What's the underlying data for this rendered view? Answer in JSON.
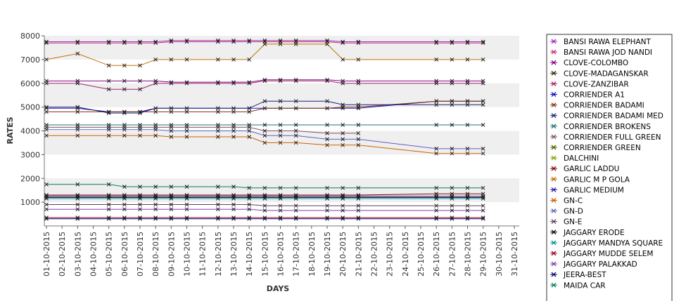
{
  "chart_data": {
    "type": "line",
    "xlabel": "DAYS",
    "ylabel": "RATES",
    "ylim": [
      0,
      8000
    ],
    "yticks": [
      1000,
      2000,
      3000,
      4000,
      5000,
      6000,
      7000,
      8000
    ],
    "grid": "horizontal alternating bands",
    "legend_position": "right",
    "categories": [
      "01-10-2015",
      "02-10-2015",
      "03-10-2015",
      "04-10-2015",
      "05-10-2015",
      "06-10-2015",
      "07-10-2015",
      "08-10-2015",
      "09-10-2015",
      "10-10-2015",
      "11-10-2015",
      "12-10-2015",
      "13-10-2015",
      "14-10-2015",
      "15-10-2015",
      "16-10-2015",
      "17-10-2015",
      "18-10-2015",
      "19-10-2015",
      "20-10-2015",
      "21-10-2015",
      "22-10-2015",
      "23-10-2015",
      "24-10-2015",
      "25-10-2015",
      "26-10-2015",
      "27-10-2015",
      "28-10-2015",
      "29-10-2015",
      "30-10-2015",
      "31-10-2015"
    ],
    "series": [
      {
        "name": "BANSI RAWA ELEPHANT",
        "color": "#9b30c8",
        "values": [
          7750,
          null,
          7750,
          null,
          7750,
          7750,
          7750,
          7750,
          7800,
          7800,
          null,
          7800,
          7800,
          7800,
          7800,
          7800,
          7800,
          null,
          7800,
          7750,
          7750,
          null,
          null,
          null,
          null,
          7750,
          7750,
          7750,
          7750,
          null,
          null
        ]
      },
      {
        "name": "BANSI RAWA JOD NANDI",
        "color": "#c0306a",
        "values": [
          7700,
          null,
          7700,
          null,
          7700,
          7700,
          7700,
          7700,
          7750,
          7750,
          null,
          7750,
          7750,
          7750,
          7750,
          7750,
          7750,
          null,
          7750,
          7700,
          7700,
          null,
          null,
          null,
          null,
          7700,
          7700,
          7700,
          7700,
          null,
          null
        ]
      },
      {
        "name": "CLOVE-COLOMBO",
        "color": "#7a0080",
        "values": [
          6100,
          null,
          6100,
          null,
          6100,
          6100,
          6100,
          6100,
          6050,
          6050,
          null,
          6050,
          6050,
          6050,
          6150,
          6150,
          6150,
          null,
          6150,
          6100,
          6100,
          null,
          null,
          null,
          null,
          6100,
          6100,
          6100,
          6100,
          null,
          null
        ]
      },
      {
        "name": "CLOVE-MADAGANSKAR",
        "color": "#2c2c00",
        "values": [
          null,
          null,
          null,
          null,
          null,
          null,
          null,
          null,
          null,
          null,
          null,
          null,
          null,
          null,
          null,
          null,
          null,
          null,
          null,
          null,
          null,
          null,
          null,
          null,
          null,
          null,
          null,
          null,
          null,
          null,
          null
        ]
      },
      {
        "name": "CLOVE-ZANZIBAR",
        "color": "#a0206a",
        "values": [
          6000,
          null,
          6000,
          null,
          5750,
          5750,
          5750,
          6000,
          6000,
          6000,
          null,
          6000,
          6000,
          6000,
          6100,
          6100,
          6100,
          null,
          6100,
          6000,
          6000,
          null,
          null,
          null,
          null,
          6000,
          6000,
          6000,
          6000,
          null,
          null
        ]
      },
      {
        "name": "CORRIENDER A1",
        "color": "#1010c0",
        "values": [
          4950,
          null,
          4950,
          null,
          4800,
          4800,
          4800,
          4950,
          4950,
          4950,
          null,
          4950,
          4950,
          4950,
          4950,
          4950,
          4950,
          null,
          4950,
          4950,
          4950,
          null,
          null,
          null,
          null,
          5250,
          5250,
          5250,
          5250,
          null,
          null
        ]
      },
      {
        "name": "CORRIENDER BADAMI",
        "color": "#803010",
        "values": [
          4800,
          null,
          4800,
          null,
          4800,
          4800,
          4800,
          4800,
          4800,
          4800,
          null,
          4800,
          4800,
          4800,
          4950,
          4950,
          4950,
          null,
          4950,
          5000,
          5000,
          null,
          null,
          null,
          null,
          5250,
          5250,
          5250,
          5250,
          null,
          null
        ]
      },
      {
        "name": "CORRIENDER BADAMI MED",
        "color": "#202070",
        "values": [
          5000,
          null,
          5000,
          null,
          4750,
          4750,
          4750,
          4950,
          4950,
          4950,
          null,
          4950,
          4950,
          4950,
          5250,
          5250,
          5250,
          null,
          5250,
          5100,
          5100,
          null,
          null,
          null,
          null,
          5100,
          5100,
          5100,
          5100,
          null,
          null
        ]
      },
      {
        "name": "CORRIENDER BROKENS",
        "color": "#207070",
        "values": [
          4250,
          null,
          4250,
          null,
          4250,
          4250,
          4250,
          4250,
          4250,
          4250,
          null,
          4250,
          4250,
          4250,
          4250,
          4250,
          4250,
          null,
          4250,
          4250,
          4250,
          null,
          null,
          null,
          null,
          4250,
          4250,
          4250,
          4250,
          null,
          null
        ]
      },
      {
        "name": "CORRIENDER FULL GREEN",
        "color": "#805060",
        "values": [
          4150,
          null,
          4150,
          null,
          4150,
          4150,
          4150,
          4150,
          4150,
          4150,
          null,
          4150,
          4150,
          4150,
          4000,
          4000,
          4000,
          null,
          3900,
          3900,
          3900,
          null,
          null,
          null,
          null,
          null,
          null,
          null,
          null,
          null,
          null
        ]
      },
      {
        "name": "CORRIENDER GREEN",
        "color": "#506000",
        "values": [
          null,
          null,
          null,
          null,
          null,
          null,
          null,
          null,
          null,
          null,
          null,
          null,
          null,
          null,
          null,
          null,
          null,
          null,
          null,
          null,
          null,
          null,
          null,
          null,
          null,
          null,
          null,
          null,
          null,
          null,
          null
        ]
      },
      {
        "name": "DALCHINI",
        "color": "#90a000",
        "values": [
          null,
          null,
          null,
          null,
          null,
          null,
          null,
          null,
          null,
          null,
          null,
          null,
          null,
          null,
          null,
          null,
          null,
          null,
          null,
          null,
          null,
          null,
          null,
          null,
          null,
          null,
          null,
          null,
          null,
          null,
          null
        ]
      },
      {
        "name": "GARLIC LADDU",
        "color": "#800000",
        "values": [
          1300,
          null,
          1300,
          null,
          1300,
          1300,
          1300,
          1300,
          1300,
          1300,
          null,
          1300,
          1300,
          1300,
          1300,
          1300,
          1300,
          null,
          1300,
          1300,
          1300,
          null,
          null,
          null,
          null,
          1350,
          1350,
          1350,
          1350,
          null,
          null
        ]
      },
      {
        "name": "GARLIC M P GOLA",
        "color": "#c07000",
        "values": [
          7000,
          null,
          7250,
          null,
          6750,
          6750,
          6750,
          7000,
          7000,
          7000,
          null,
          7000,
          7000,
          7000,
          7650,
          7650,
          7650,
          null,
          7650,
          7000,
          7000,
          null,
          null,
          null,
          null,
          7000,
          7000,
          7000,
          7000,
          null,
          null
        ]
      },
      {
        "name": "GARLIC MEDIUM",
        "color": "#3010a0",
        "values": [
          1250,
          null,
          1250,
          null,
          1250,
          1250,
          1250,
          1250,
          1250,
          1250,
          null,
          1250,
          1250,
          1250,
          1250,
          1250,
          1250,
          null,
          1250,
          1250,
          1250,
          null,
          null,
          null,
          null,
          1250,
          1250,
          1250,
          1250,
          null,
          null
        ]
      },
      {
        "name": "GN-C",
        "color": "#d06000",
        "values": [
          3800,
          null,
          3800,
          null,
          3800,
          3800,
          3800,
          3800,
          3750,
          3750,
          null,
          3750,
          3750,
          3750,
          3500,
          3500,
          3500,
          null,
          3400,
          3400,
          3400,
          null,
          null,
          null,
          null,
          3050,
          3050,
          3050,
          3050,
          null,
          null
        ]
      },
      {
        "name": "GN-D",
        "color": "#6060c0",
        "values": [
          4050,
          null,
          4050,
          null,
          4050,
          4050,
          4050,
          4050,
          4000,
          4000,
          null,
          4000,
          4000,
          4000,
          3800,
          3800,
          3800,
          null,
          3650,
          3650,
          3650,
          null,
          null,
          null,
          null,
          3250,
          3250,
          3250,
          3250,
          null,
          null
        ]
      },
      {
        "name": "GN-E",
        "color": "#604060",
        "values": [
          900,
          null,
          900,
          null,
          900,
          900,
          900,
          900,
          900,
          900,
          null,
          900,
          900,
          900,
          850,
          850,
          850,
          null,
          850,
          850,
          850,
          null,
          null,
          null,
          null,
          850,
          850,
          850,
          850,
          null,
          null
        ]
      },
      {
        "name": "JAGGARY ERODE",
        "color": "#000000",
        "values": [
          1200,
          null,
          1200,
          null,
          1200,
          1200,
          1200,
          1200,
          1200,
          1200,
          null,
          1200,
          1200,
          1200,
          1200,
          1200,
          1200,
          null,
          1200,
          1200,
          1200,
          null,
          null,
          null,
          null,
          1200,
          1200,
          1200,
          1200,
          null,
          null
        ]
      },
      {
        "name": "JAGGARY MANDYA SQUARE",
        "color": "#009090",
        "values": [
          1150,
          null,
          1150,
          null,
          1150,
          1150,
          1150,
          1150,
          1150,
          1150,
          null,
          1150,
          1150,
          1150,
          1150,
          1150,
          1150,
          null,
          1150,
          1150,
          1150,
          null,
          null,
          null,
          null,
          1150,
          1150,
          1150,
          1150,
          null,
          null
        ]
      },
      {
        "name": "JAGGARY MUDDE SELEM",
        "color": "#a00030",
        "values": [
          350,
          null,
          350,
          null,
          350,
          350,
          350,
          350,
          350,
          350,
          null,
          350,
          350,
          350,
          350,
          350,
          350,
          null,
          350,
          350,
          350,
          null,
          null,
          null,
          null,
          350,
          350,
          350,
          350,
          null,
          null
        ]
      },
      {
        "name": "JAGGARY PALAKKAD",
        "color": "#8040a0",
        "values": [
          700,
          null,
          700,
          null,
          700,
          700,
          700,
          700,
          700,
          700,
          null,
          700,
          700,
          700,
          650,
          650,
          650,
          null,
          650,
          650,
          650,
          null,
          null,
          null,
          null,
          650,
          650,
          650,
          650,
          null,
          null
        ]
      },
      {
        "name": "JEERA-BEST",
        "color": "#000060",
        "values": [
          300,
          null,
          300,
          null,
          300,
          300,
          300,
          300,
          300,
          300,
          null,
          300,
          300,
          300,
          300,
          300,
          300,
          null,
          300,
          300,
          300,
          null,
          null,
          null,
          null,
          300,
          300,
          300,
          300,
          null,
          null
        ]
      },
      {
        "name": "MAIDA CAR",
        "color": "#008060",
        "values": [
          1750,
          null,
          1750,
          null,
          1750,
          1650,
          1650,
          1650,
          1650,
          1650,
          null,
          1650,
          1650,
          1600,
          1600,
          1600,
          1600,
          null,
          1600,
          1600,
          1600,
          null,
          null,
          null,
          null,
          1600,
          1600,
          1600,
          1600,
          null,
          null
        ]
      }
    ]
  }
}
